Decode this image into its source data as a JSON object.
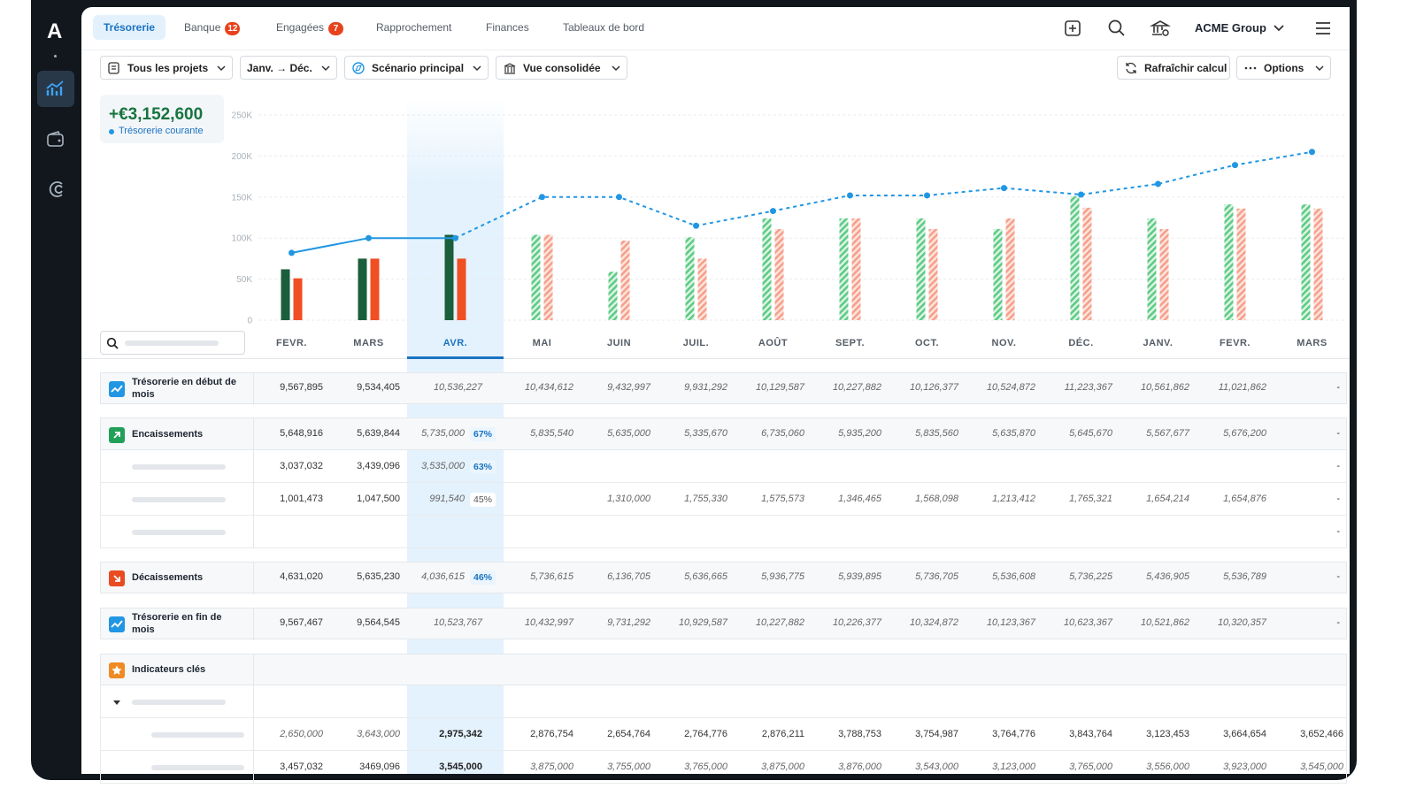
{
  "nav": {
    "logo": "A",
    "tabs": [
      {
        "label": "Trésorerie"
      },
      {
        "label": "Banque",
        "badge": 12
      },
      {
        "label": "Engagées",
        "badge": 7
      },
      {
        "label": "Rapprochement"
      },
      {
        "label": "Finances"
      },
      {
        "label": "Tableaux de bord"
      }
    ],
    "account": "ACME Group"
  },
  "toolbar": {
    "filters": [
      "Tous les projets",
      "Janv. → Déc.",
      "Scénario principal",
      "Vue consolidée"
    ],
    "actions": [
      "Rafraîchir calcul",
      "Options"
    ]
  },
  "kpi": {
    "value": "+€3,152,600",
    "label": "Trésorerie courante"
  },
  "chart_data": {
    "type": "bar_line",
    "categories": [
      "FEVR.",
      "MARS",
      "AVR.",
      "MAI",
      "JUIN",
      "JUIL.",
      "AOÛT",
      "SEPT.",
      "OCT.",
      "NOV.",
      "DÉC.",
      "JANV.",
      "FEVR.",
      "MARS"
    ],
    "selected_index": 2,
    "forecast": [
      false,
      false,
      false,
      true,
      true,
      true,
      true,
      true,
      true,
      true,
      true,
      true,
      true,
      true
    ],
    "ylim": [
      0,
      250000
    ],
    "yticks": [
      0,
      {
        "value": 50000,
        "label": "50K"
      },
      {
        "value": 100000,
        "label": "100K"
      },
      {
        "value": 150000,
        "label": "150K"
      },
      {
        "value": 200000,
        "label": "200K"
      },
      {
        "value": 250000,
        "label": "250K"
      }
    ],
    "grid": true,
    "series": [
      {
        "type": "bar",
        "color": "#1b5e3b",
        "forecast_color": "#5fcb85",
        "values": [
          62000,
          75000,
          104000,
          104000,
          59000,
          101000,
          124000,
          124000,
          124000,
          111000,
          151000,
          124000,
          141000,
          141000
        ]
      },
      {
        "type": "bar",
        "color": "#f04e23",
        "forecast_color": "#f5a08c",
        "values": [
          51000,
          75000,
          75000,
          104000,
          97000,
          75000,
          111000,
          124000,
          111000,
          124000,
          137000,
          111000,
          136000,
          136000
        ]
      },
      {
        "type": "line",
        "color": "#2196e3",
        "values": [
          82000,
          100000,
          100000,
          150000,
          150000,
          115000,
          133000,
          152000,
          152000,
          161000,
          153000,
          166000,
          189000,
          205000
        ]
      }
    ]
  },
  "table": {
    "rows": [
      {
        "label": "Trésorerie en début de mois",
        "icon": "trend",
        "cells": [
          "9,567,895",
          "9,534,405",
          "10,536,227",
          "10,434,612",
          "9,432,997",
          "9,931,292",
          "10,129,587",
          "10,227,882",
          "10,126,377",
          "10,524,872",
          "11,223,367",
          "10,561,862",
          "11,021,862",
          "-"
        ]
      },
      {
        "label": "Encaissements",
        "icon": "in",
        "pct": "67%",
        "cells": [
          "5,648,916",
          "5,639,844",
          "5,735,000",
          "5,835,540",
          "5,635,000",
          "5,335,670",
          "6,735,060",
          "5,935,200",
          "5,835,560",
          "5,635,870",
          "5,645,670",
          "5,567,677",
          "5,676,200",
          "-"
        ]
      },
      {
        "pct": "63%",
        "cells": [
          "3,037,032",
          "3,439,096",
          "3,535,000",
          null,
          null,
          null,
          null,
          null,
          null,
          null,
          null,
          null,
          null,
          "-"
        ]
      },
      {
        "pct": "45%",
        "cells": [
          "1,001,473",
          "1,047,500",
          "991,540",
          null,
          "1,310,000",
          "1,755,330",
          "1,575,573",
          "1,346,465",
          "1,568,098",
          "1,213,412",
          "1,765,321",
          "1,654,214",
          "1,654,876",
          "-"
        ]
      },
      {
        "cells": [
          null,
          null,
          null,
          null,
          null,
          null,
          null,
          null,
          null,
          null,
          null,
          null,
          null,
          "-"
        ]
      },
      {
        "label": "Décaissements",
        "icon": "out",
        "pct": "46%",
        "cells": [
          "4,631,020",
          "5,635,230",
          "4,036,615",
          "5,736,615",
          "6,136,705",
          "5,636,665",
          "5,936,775",
          "5,939,895",
          "5,736,705",
          "5,536,608",
          "5,736,225",
          "5,436,905",
          "5,536,789",
          "-"
        ]
      },
      {
        "label": "Trésorerie en fin de mois",
        "icon": "trend",
        "cells": [
          "9,567,467",
          "9,564,545",
          "10,523,767",
          "10,432,997",
          "9,731,292",
          "10,929,587",
          "10,227,882",
          "10,226,377",
          "10,324,872",
          "10,123,367",
          "10,623,367",
          "10,521,862",
          "10,320,357",
          "-"
        ]
      },
      {
        "label": "Indicateurs clés",
        "icon": "star"
      },
      {
        "collapsible": true
      },
      {
        "cells": [
          "2,650,000",
          "3,643,000",
          "2,975,342",
          "2,876,754",
          "2,654,764",
          "2,764,776",
          "2,876,211",
          "3,788,753",
          "3,754,987",
          "3,764,776",
          "3,843,764",
          "3,123,453",
          "3,664,654",
          "3,652,466"
        ]
      },
      {
        "cells": [
          "3,457,032",
          "3469,096",
          "3,545,000",
          "3,875,000",
          "3,755,000",
          "3,765,000",
          "3,875,000",
          "3,876,000",
          "3,543,000",
          "3,123,000",
          "3,765,000",
          "3,556,000",
          "3,923,000",
          "3,545,000"
        ]
      }
    ]
  }
}
